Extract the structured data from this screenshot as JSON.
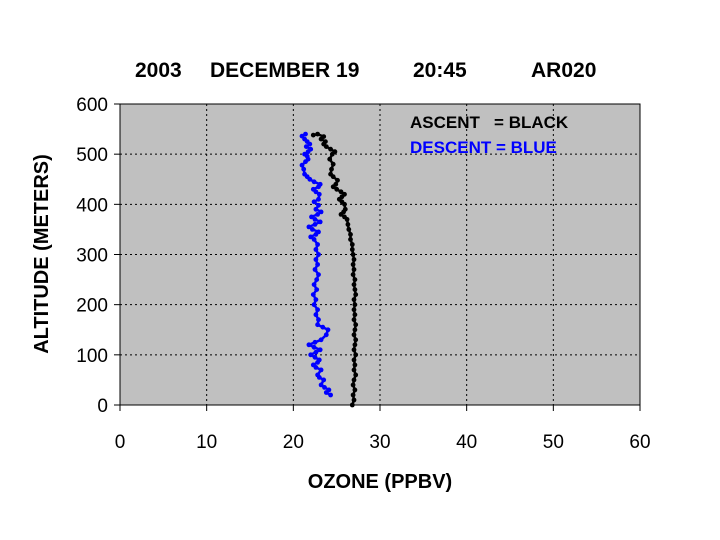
{
  "chart_data": {
    "type": "line",
    "title_parts": [
      "2003",
      "DECEMBER 19",
      "20:45",
      "AR020"
    ],
    "xlabel": "OZONE (PPBV)",
    "ylabel": "ALTITUDE (METERS)",
    "xlim": [
      0,
      60
    ],
    "ylim": [
      0,
      600
    ],
    "xticks": [
      0,
      10,
      20,
      30,
      40,
      50,
      60
    ],
    "yticks": [
      0,
      100,
      200,
      300,
      400,
      500,
      600
    ],
    "grid": true,
    "plot_background": "#c0c0c0",
    "legend_placement": "top-right",
    "legend": [
      "ASCENT   = BLACK",
      "DESCENT = BLUE"
    ],
    "series": [
      {
        "color": "#000000",
        "points": [
          [
            26.8,
            0
          ],
          [
            27.0,
            10
          ],
          [
            26.9,
            20
          ],
          [
            27.1,
            30
          ],
          [
            26.9,
            40
          ],
          [
            27.0,
            50
          ],
          [
            27.2,
            60
          ],
          [
            27.0,
            70
          ],
          [
            27.1,
            80
          ],
          [
            27.0,
            90
          ],
          [
            27.2,
            100
          ],
          [
            27.0,
            110
          ],
          [
            27.1,
            120
          ],
          [
            27.2,
            130
          ],
          [
            27.0,
            140
          ],
          [
            27.1,
            150
          ],
          [
            27.2,
            160
          ],
          [
            27.0,
            170
          ],
          [
            27.1,
            180
          ],
          [
            27.0,
            190
          ],
          [
            27.1,
            200
          ],
          [
            27.0,
            210
          ],
          [
            27.2,
            220
          ],
          [
            27.1,
            230
          ],
          [
            27.0,
            240
          ],
          [
            27.1,
            250
          ],
          [
            26.9,
            260
          ],
          [
            27.0,
            270
          ],
          [
            26.9,
            280
          ],
          [
            27.0,
            290
          ],
          [
            26.9,
            300
          ],
          [
            26.8,
            310
          ],
          [
            26.8,
            320
          ],
          [
            26.6,
            330
          ],
          [
            26.6,
            340
          ],
          [
            26.4,
            350
          ],
          [
            26.3,
            360
          ],
          [
            26.2,
            370
          ],
          [
            25.9,
            375
          ],
          [
            25.5,
            380
          ],
          [
            25.8,
            385
          ],
          [
            26.0,
            390
          ],
          [
            25.9,
            400
          ],
          [
            25.6,
            405
          ],
          [
            25.3,
            410
          ],
          [
            25.6,
            415
          ],
          [
            25.9,
            420
          ],
          [
            25.5,
            425
          ],
          [
            25.0,
            430
          ],
          [
            24.6,
            435
          ],
          [
            24.9,
            440
          ],
          [
            25.1,
            448
          ],
          [
            24.6,
            455
          ],
          [
            24.3,
            460
          ],
          [
            24.4,
            470
          ],
          [
            24.6,
            480
          ],
          [
            24.2,
            490
          ],
          [
            24.5,
            500
          ],
          [
            24.8,
            505
          ],
          [
            24.3,
            510
          ],
          [
            23.8,
            515
          ],
          [
            23.5,
            520
          ],
          [
            23.7,
            525
          ],
          [
            23.2,
            530
          ],
          [
            23.5,
            535
          ],
          [
            22.8,
            540
          ],
          [
            22.3,
            538
          ]
        ]
      },
      {
        "color": "#0000ff",
        "points": [
          [
            24.3,
            20
          ],
          [
            23.8,
            25
          ],
          [
            24.1,
            30
          ],
          [
            23.6,
            35
          ],
          [
            23.2,
            40
          ],
          [
            23.5,
            50
          ],
          [
            23.0,
            55
          ],
          [
            22.8,
            60
          ],
          [
            23.2,
            70
          ],
          [
            22.6,
            75
          ],
          [
            22.3,
            80
          ],
          [
            22.8,
            85
          ],
          [
            23.0,
            90
          ],
          [
            22.5,
            95
          ],
          [
            22.0,
            100
          ],
          [
            22.6,
            105
          ],
          [
            23.1,
            110
          ],
          [
            22.4,
            115
          ],
          [
            21.8,
            120
          ],
          [
            22.5,
            125
          ],
          [
            23.2,
            130
          ],
          [
            23.8,
            140
          ],
          [
            24.0,
            150
          ],
          [
            23.4,
            155
          ],
          [
            22.8,
            160
          ],
          [
            22.9,
            170
          ],
          [
            22.6,
            180
          ],
          [
            22.8,
            190
          ],
          [
            22.4,
            200
          ],
          [
            22.6,
            210
          ],
          [
            22.3,
            220
          ],
          [
            22.7,
            230
          ],
          [
            22.4,
            240
          ],
          [
            22.7,
            250
          ],
          [
            22.9,
            260
          ],
          [
            22.5,
            270
          ],
          [
            22.8,
            280
          ],
          [
            22.6,
            290
          ],
          [
            22.9,
            300
          ],
          [
            22.6,
            310
          ],
          [
            22.8,
            320
          ],
          [
            22.4,
            330
          ],
          [
            22.0,
            335
          ],
          [
            22.6,
            340
          ],
          [
            22.9,
            345
          ],
          [
            22.2,
            350
          ],
          [
            21.8,
            355
          ],
          [
            22.5,
            360
          ],
          [
            23.1,
            365
          ],
          [
            22.5,
            370
          ],
          [
            22.1,
            375
          ],
          [
            22.8,
            380
          ],
          [
            23.2,
            385
          ],
          [
            22.6,
            390
          ],
          [
            22.9,
            398
          ],
          [
            22.4,
            405
          ],
          [
            22.9,
            410
          ],
          [
            23.0,
            420
          ],
          [
            22.6,
            425
          ],
          [
            22.3,
            430
          ],
          [
            22.9,
            435
          ],
          [
            23.1,
            440
          ],
          [
            22.4,
            445
          ],
          [
            21.9,
            450
          ],
          [
            21.6,
            455
          ],
          [
            21.3,
            460
          ],
          [
            21.2,
            470
          ],
          [
            21.0,
            478
          ],
          [
            21.4,
            485
          ],
          [
            21.7,
            490
          ],
          [
            21.6,
            496
          ],
          [
            21.3,
            500
          ],
          [
            21.7,
            505
          ],
          [
            22.0,
            510
          ],
          [
            21.5,
            515
          ],
          [
            21.9,
            520
          ],
          [
            21.6,
            525
          ],
          [
            21.3,
            530
          ],
          [
            21.0,
            536
          ],
          [
            21.4,
            540
          ]
        ]
      }
    ]
  }
}
